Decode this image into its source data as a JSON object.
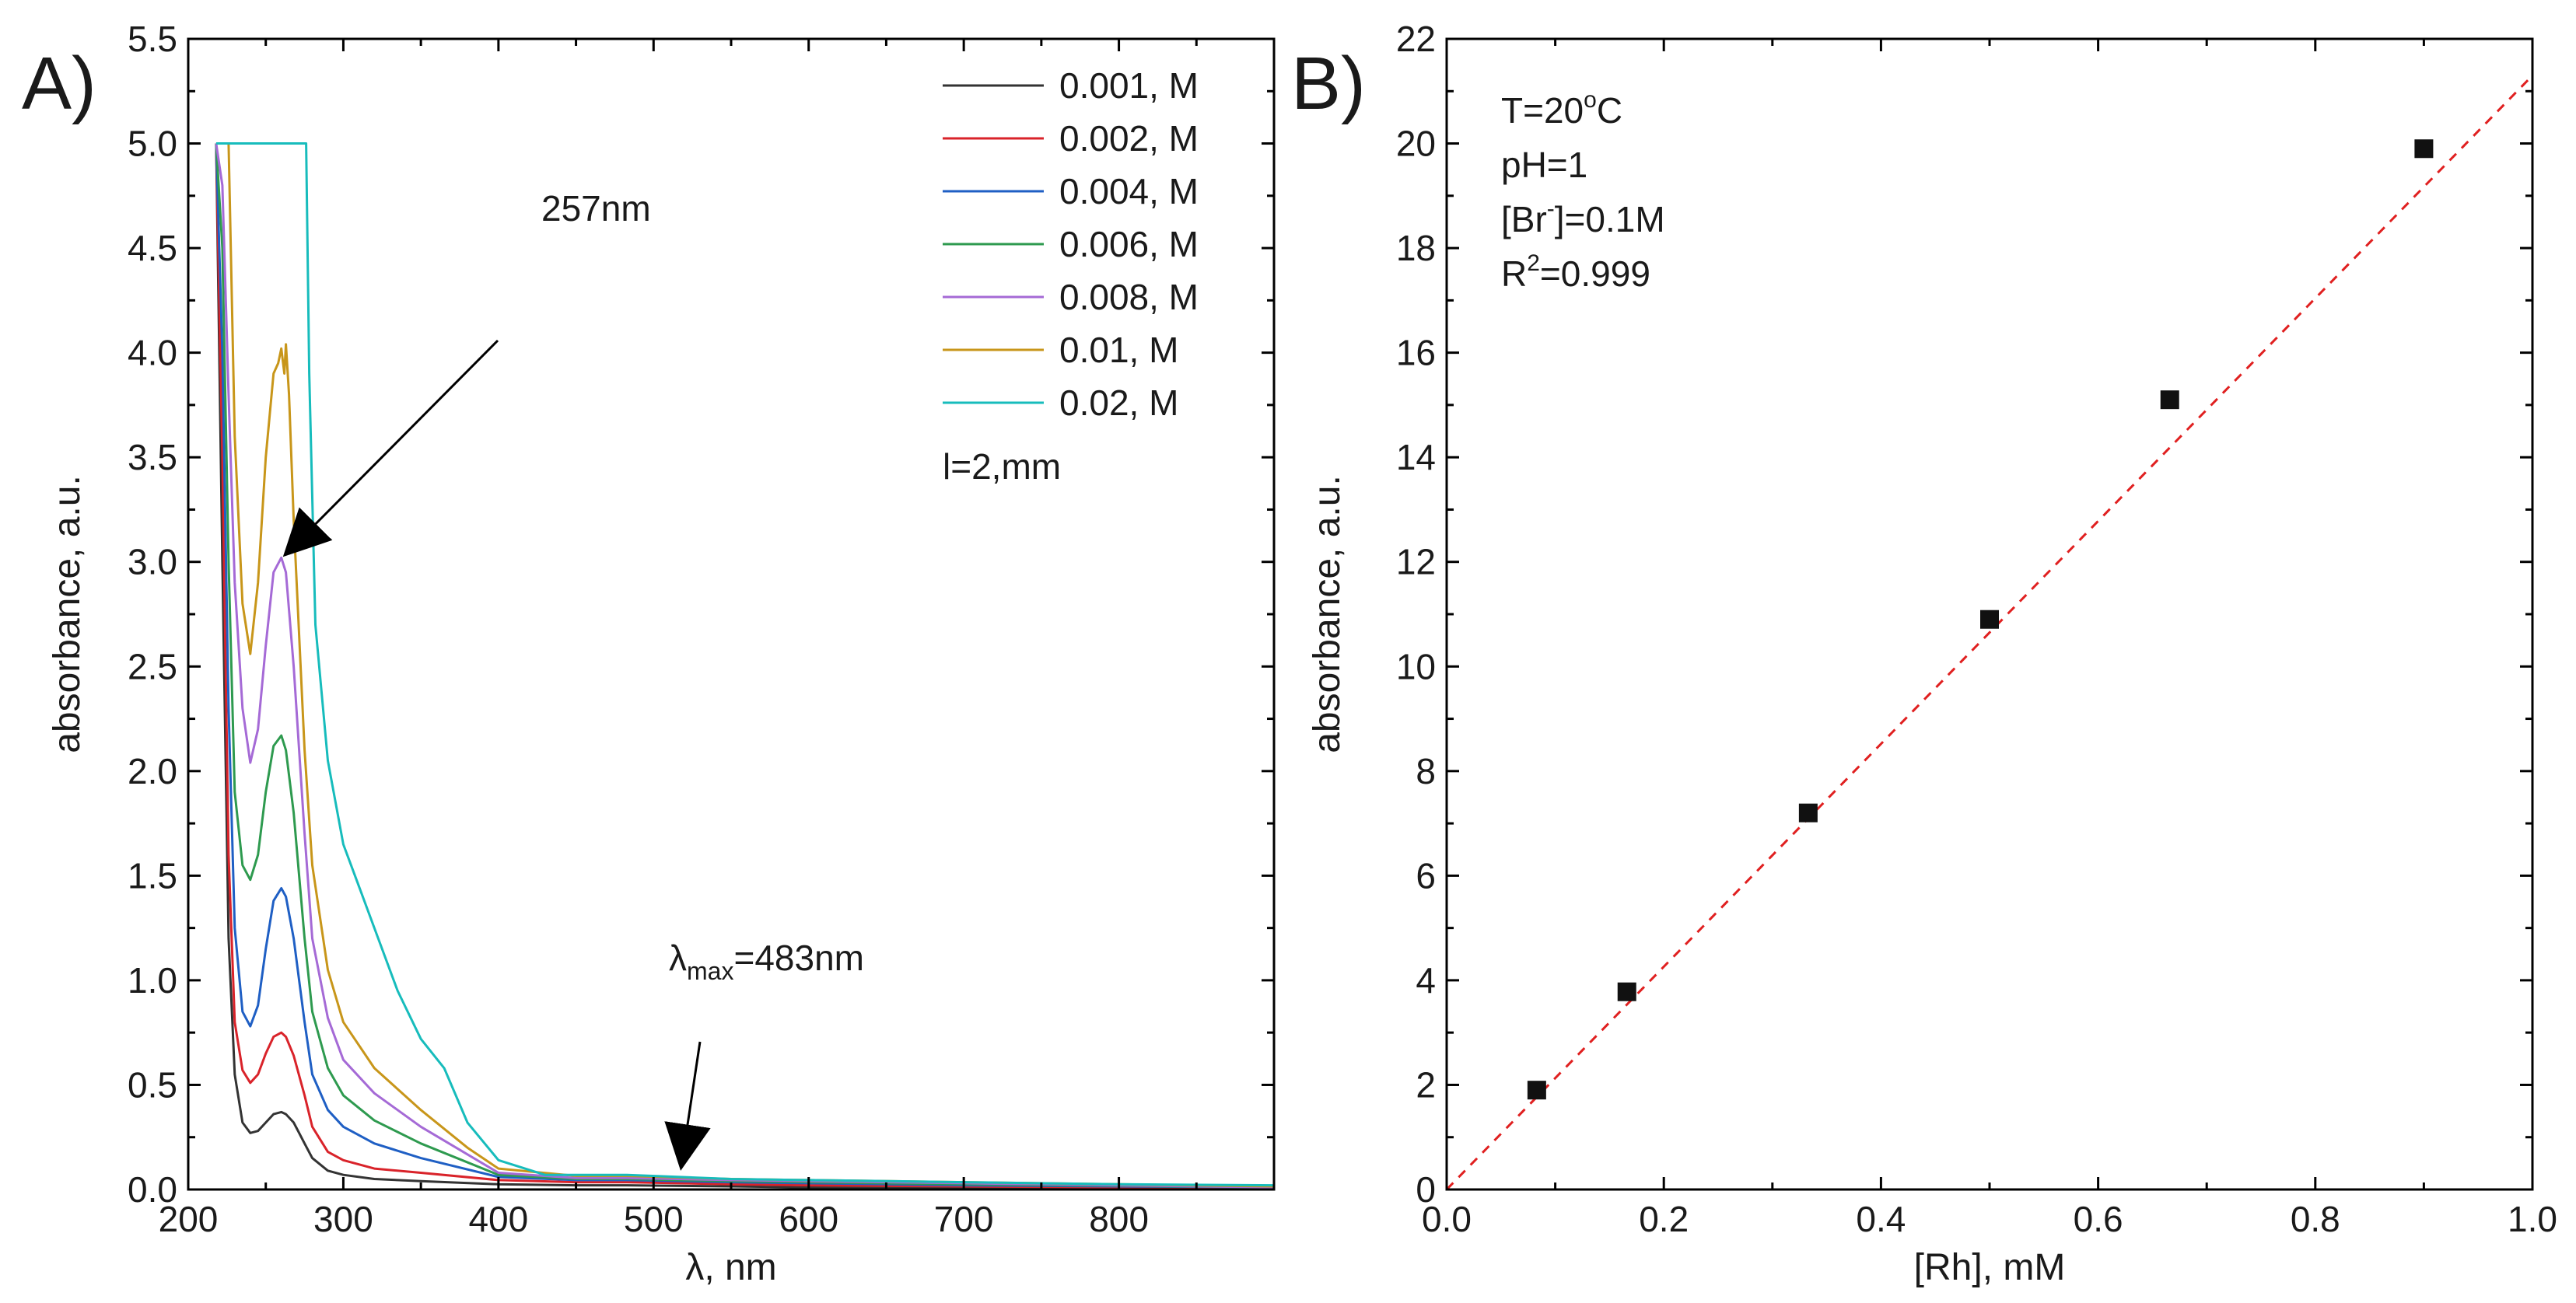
{
  "chart_data": [
    {
      "panel": "A)",
      "type": "line",
      "xlabel": "λ, nm",
      "ylabel": "absorbance, a.u.",
      "xlim": [
        200,
        900
      ],
      "ylim": [
        0,
        5.5
      ],
      "xticks": [
        200,
        300,
        400,
        500,
        600,
        700,
        800
      ],
      "yticks": [
        0.0,
        0.5,
        1.0,
        1.5,
        2.0,
        2.5,
        3.0,
        3.5,
        4.0,
        4.5,
        5.0,
        5.5
      ],
      "xtick_labels": [
        "200",
        "300",
        "400",
        "500",
        "600",
        "700",
        "800"
      ],
      "ytick_labels": [
        "0.0",
        "0.5",
        "1.0",
        "1.5",
        "2.0",
        "2.5",
        "3.0",
        "3.5",
        "4.0",
        "4.5",
        "5.0",
        "5.5"
      ],
      "legend_position": "top-right",
      "legend_note": "l=2,mm",
      "annotations": {
        "peak_label": "257nm",
        "lambda_symbol": "λ",
        "lambda_sub": "max",
        "lambda_value": "=483nm"
      },
      "series": [
        {
          "name": "0.001, M",
          "color": "#333333",
          "x": [
            218,
            222,
            226,
            230,
            235,
            240,
            245,
            250,
            255,
            260,
            263,
            268,
            275,
            280,
            290,
            300,
            320,
            350,
            400,
            450,
            483,
            550,
            600,
            700,
            800,
            900
          ],
          "y": [
            5.0,
            3.0,
            1.2,
            0.55,
            0.32,
            0.27,
            0.28,
            0.32,
            0.36,
            0.37,
            0.36,
            0.32,
            0.22,
            0.15,
            0.09,
            0.07,
            0.05,
            0.04,
            0.025,
            0.02,
            0.02,
            0.015,
            0.01,
            0.008,
            0.005,
            0.003
          ]
        },
        {
          "name": "0.002, M",
          "color": "#d9232a",
          "x": [
            218,
            222,
            226,
            230,
            235,
            240,
            245,
            250,
            255,
            260,
            263,
            268,
            275,
            280,
            290,
            300,
            320,
            350,
            400,
            450,
            483,
            550,
            600,
            700,
            800,
            900
          ],
          "y": [
            5.0,
            3.5,
            1.6,
            0.8,
            0.57,
            0.51,
            0.55,
            0.65,
            0.73,
            0.75,
            0.73,
            0.64,
            0.45,
            0.3,
            0.18,
            0.14,
            0.1,
            0.08,
            0.045,
            0.035,
            0.035,
            0.025,
            0.02,
            0.015,
            0.01,
            0.005
          ]
        },
        {
          "name": "0.004, M",
          "color": "#1f5fc4",
          "x": [
            218,
            222,
            226,
            230,
            235,
            240,
            245,
            250,
            255,
            260,
            263,
            268,
            275,
            280,
            290,
            300,
            320,
            350,
            400,
            450,
            483,
            550,
            600,
            700,
            800,
            900
          ],
          "y": [
            5.0,
            4.0,
            2.3,
            1.25,
            0.85,
            0.78,
            0.88,
            1.15,
            1.38,
            1.44,
            1.4,
            1.2,
            0.8,
            0.55,
            0.38,
            0.3,
            0.22,
            0.15,
            0.06,
            0.045,
            0.045,
            0.035,
            0.03,
            0.02,
            0.015,
            0.01
          ]
        },
        {
          "name": "0.006, M",
          "color": "#2e9a4f",
          "x": [
            218,
            222,
            226,
            230,
            235,
            240,
            245,
            250,
            255,
            260,
            263,
            268,
            275,
            280,
            290,
            300,
            320,
            350,
            400,
            450,
            483,
            550,
            600,
            700,
            800,
            900
          ],
          "y": [
            5.0,
            4.5,
            3.0,
            1.9,
            1.55,
            1.48,
            1.6,
            1.9,
            2.12,
            2.17,
            2.1,
            1.8,
            1.2,
            0.85,
            0.58,
            0.45,
            0.33,
            0.22,
            0.07,
            0.05,
            0.05,
            0.04,
            0.035,
            0.025,
            0.018,
            0.01
          ]
        },
        {
          "name": "0.008, M",
          "color": "#a56ad6",
          "x": [
            218,
            222,
            226,
            230,
            235,
            240,
            245,
            250,
            255,
            260,
            263,
            268,
            275,
            280,
            290,
            300,
            320,
            350,
            400,
            450,
            483,
            550,
            600,
            700,
            800,
            900
          ],
          "y": [
            5.0,
            4.8,
            3.8,
            2.9,
            2.3,
            2.04,
            2.2,
            2.6,
            2.95,
            3.02,
            2.95,
            2.5,
            1.7,
            1.2,
            0.82,
            0.62,
            0.46,
            0.3,
            0.08,
            0.055,
            0.055,
            0.045,
            0.04,
            0.03,
            0.02,
            0.01
          ]
        },
        {
          "name": "0.01, M",
          "color": "#c8961a",
          "x": [
            218,
            222,
            226,
            230,
            235,
            240,
            245,
            250,
            255,
            258,
            260,
            262,
            263,
            265,
            268,
            275,
            280,
            290,
            300,
            320,
            350,
            380,
            400,
            450,
            483,
            550,
            600,
            700,
            800,
            900
          ],
          "y": [
            5.0,
            5.0,
            5.0,
            3.6,
            2.8,
            2.56,
            2.9,
            3.5,
            3.9,
            3.95,
            4.02,
            3.9,
            4.04,
            3.8,
            3.2,
            2.1,
            1.55,
            1.05,
            0.8,
            0.58,
            0.38,
            0.2,
            0.1,
            0.065,
            0.065,
            0.05,
            0.045,
            0.035,
            0.025,
            0.015
          ]
        },
        {
          "name": "0.02, M",
          "color": "#17bcbc",
          "x": [
            218,
            226,
            235,
            250,
            265,
            276,
            278,
            282,
            290,
            300,
            310,
            320,
            335,
            350,
            365,
            380,
            400,
            430,
            483,
            550,
            600,
            700,
            800,
            900
          ],
          "y": [
            5.0,
            5.0,
            5.0,
            5.0,
            5.0,
            5.0,
            3.9,
            2.7,
            2.05,
            1.65,
            1.45,
            1.25,
            0.95,
            0.72,
            0.58,
            0.32,
            0.14,
            0.07,
            0.07,
            0.05,
            0.045,
            0.035,
            0.025,
            0.02
          ]
        }
      ]
    },
    {
      "panel": "B)",
      "type": "scatter",
      "xlabel": "[Rh], mM",
      "ylabel": "absorbance, a.u.",
      "xlim": [
        0.0,
        1.0
      ],
      "ylim": [
        0,
        22
      ],
      "xticks": [
        0.0,
        0.2,
        0.4,
        0.6,
        0.8,
        1.0
      ],
      "yticks": [
        0,
        2,
        4,
        6,
        8,
        10,
        12,
        14,
        16,
        18,
        20,
        22
      ],
      "xtick_labels": [
        "0.0",
        "0.2",
        "0.4",
        "0.6",
        "0.8",
        "1.0"
      ],
      "ytick_labels": [
        "0",
        "2",
        "4",
        "6",
        "8",
        "10",
        "12",
        "14",
        "16",
        "18",
        "20",
        "22"
      ],
      "points": {
        "x": [
          0.083,
          0.166,
          0.333,
          0.5,
          0.666,
          0.9
        ],
        "y": [
          1.9,
          3.78,
          7.2,
          10.9,
          15.1,
          19.9
        ]
      },
      "fit": {
        "type": "linear",
        "slope": 21.3,
        "intercept": 0.0,
        "color": "#e02020",
        "style": "dashed"
      },
      "marker_color": "#111111",
      "conditions": {
        "temperature": "T=20",
        "temperature_sup": "o",
        "temperature_unit": "C",
        "ph": "pH=1",
        "bromide_prefix": "[Br",
        "bromide_sup": "-",
        "bromide_value": "]=0.1M",
        "r2_prefix": "R",
        "r2_sup": "2",
        "r2_value": "=0.999"
      }
    }
  ]
}
